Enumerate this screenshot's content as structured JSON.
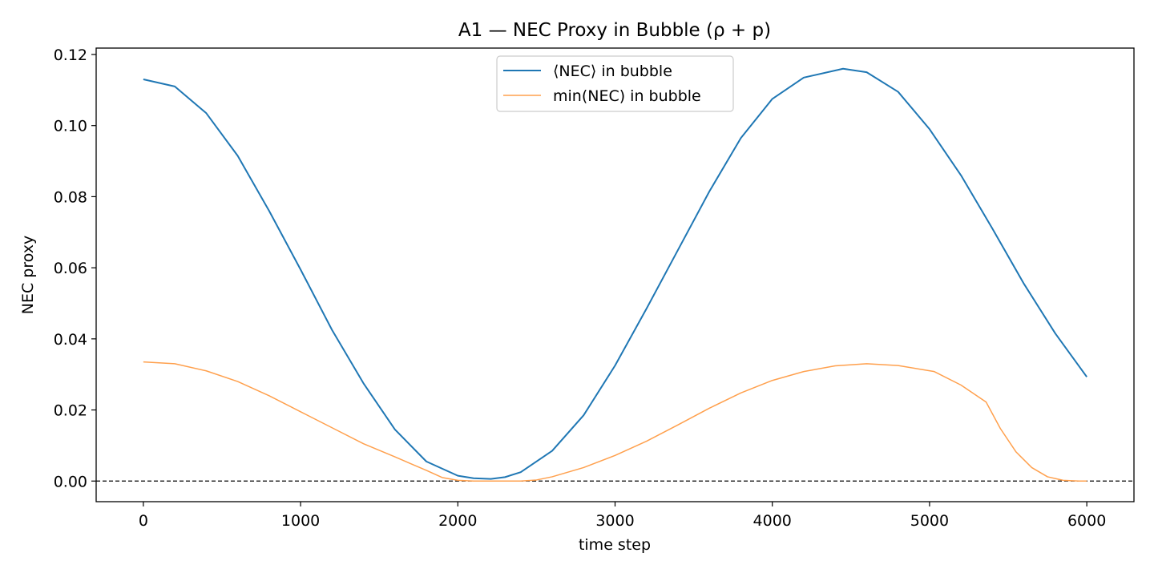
{
  "chart_data": {
    "type": "line",
    "title": "A1 — NEC Proxy in Bubble (ρ + p)",
    "xlabel": "time step",
    "ylabel": "NEC proxy",
    "xlim": [
      -300,
      6300
    ],
    "ylim": [
      -0.0058,
      0.1218
    ],
    "xticks": [
      0,
      1000,
      2000,
      3000,
      4000,
      5000,
      6000
    ],
    "xtick_labels": [
      "0",
      "1000",
      "2000",
      "3000",
      "4000",
      "5000",
      "6000"
    ],
    "yticks": [
      0.0,
      0.02,
      0.04,
      0.06,
      0.08,
      0.1,
      0.12
    ],
    "ytick_labels": [
      "0.00",
      "0.02",
      "0.04",
      "0.06",
      "0.08",
      "0.10",
      "0.12"
    ],
    "grid": false,
    "legend_position": "upper center",
    "reference_line": {
      "y": 0.0,
      "style": "dashed",
      "color": "#000000"
    },
    "series": [
      {
        "name": "⟨NEC⟩ in bubble",
        "color": "#1f77b4",
        "x": [
          0,
          200,
          400,
          600,
          800,
          1000,
          1200,
          1400,
          1600,
          1800,
          2000,
          2100,
          2210,
          2300,
          2400,
          2600,
          2800,
          3000,
          3200,
          3400,
          3600,
          3800,
          4000,
          4200,
          4450,
          4600,
          4800,
          5000,
          5200,
          5400,
          5600,
          5800,
          6000
        ],
        "y": [
          0.113,
          0.111,
          0.1035,
          0.0915,
          0.076,
          0.0595,
          0.0425,
          0.0275,
          0.0145,
          0.0055,
          0.0015,
          0.0008,
          0.0006,
          0.0011,
          0.0025,
          0.0085,
          0.0185,
          0.0325,
          0.0485,
          0.065,
          0.0815,
          0.0965,
          0.1075,
          0.1135,
          0.116,
          0.115,
          0.1095,
          0.099,
          0.086,
          0.071,
          0.0555,
          0.0415,
          0.0293
        ]
      },
      {
        "name": "min(NEC) in bubble",
        "color": "#ffa04d",
        "x": [
          0,
          200,
          400,
          600,
          800,
          1000,
          1200,
          1400,
          1600,
          1800,
          1900,
          2000,
          2100,
          2200,
          2300,
          2400,
          2500,
          2600,
          2800,
          3000,
          3200,
          3400,
          3600,
          3800,
          4000,
          4200,
          4400,
          4600,
          4800,
          5030,
          5200,
          5360,
          5450,
          5550,
          5650,
          5750,
          5850,
          5950,
          6000
        ],
        "y": [
          0.0335,
          0.033,
          0.031,
          0.028,
          0.024,
          0.0195,
          0.015,
          0.0105,
          0.0068,
          0.003,
          0.001,
          0.0002,
          0.0,
          0.0,
          0.0,
          0.0,
          0.0003,
          0.0012,
          0.0038,
          0.0072,
          0.0112,
          0.0158,
          0.0205,
          0.0248,
          0.0283,
          0.0308,
          0.0324,
          0.033,
          0.0325,
          0.0308,
          0.027,
          0.0222,
          0.0148,
          0.0082,
          0.0038,
          0.0012,
          0.0002,
          0.0,
          0.0
        ]
      }
    ]
  }
}
